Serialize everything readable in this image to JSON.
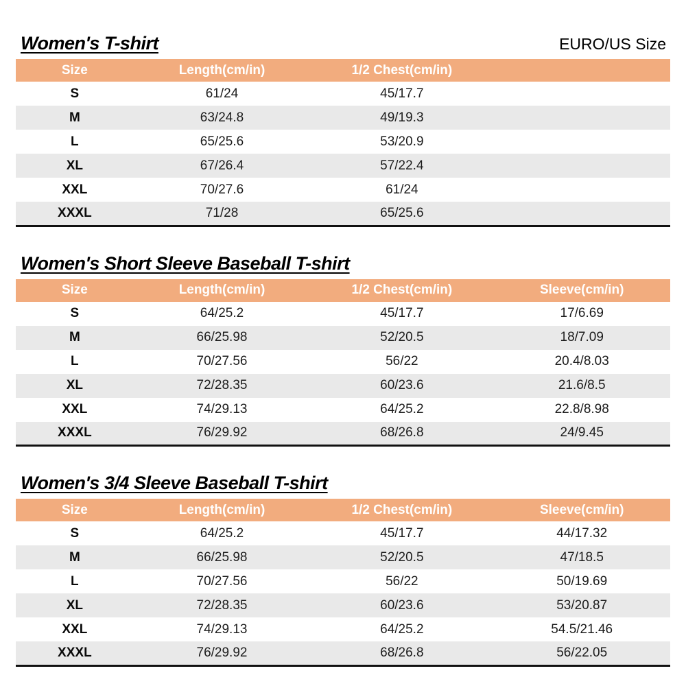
{
  "header": {
    "unit_label": "EURO/US Size"
  },
  "colors": {
    "header_bg": "#F2AC7E",
    "alt_row_bg": "#E9E9E9",
    "header_text": "#FFFFFF",
    "bottom_rule": "#111111"
  },
  "tables": [
    {
      "title": "Women's T-shirt",
      "columns": [
        "Size",
        "Length(cm/in)",
        "1/2 Chest(cm/in)",
        ""
      ],
      "rows": [
        [
          "S",
          "61/24",
          "45/17.7",
          ""
        ],
        [
          "M",
          "63/24.8",
          "49/19.3",
          ""
        ],
        [
          "L",
          "65/25.6",
          "53/20.9",
          ""
        ],
        [
          "XL",
          "67/26.4",
          "57/22.4",
          ""
        ],
        [
          "XXL",
          "70/27.6",
          "61/24",
          ""
        ],
        [
          "XXXL",
          "71/28",
          "65/25.6",
          ""
        ]
      ]
    },
    {
      "title": "Women's Short Sleeve Baseball T-shirt",
      "columns": [
        "Size",
        "Length(cm/in)",
        "1/2 Chest(cm/in)",
        "Sleeve(cm/in)"
      ],
      "rows": [
        [
          "S",
          "64/25.2",
          "45/17.7",
          "17/6.69"
        ],
        [
          "M",
          "66/25.98",
          "52/20.5",
          "18/7.09"
        ],
        [
          "L",
          "70/27.56",
          "56/22",
          "20.4/8.03"
        ],
        [
          "XL",
          "72/28.35",
          "60/23.6",
          "21.6/8.5"
        ],
        [
          "XXL",
          "74/29.13",
          "64/25.2",
          "22.8/8.98"
        ],
        [
          "XXXL",
          "76/29.92",
          "68/26.8",
          "24/9.45"
        ]
      ]
    },
    {
      "title": "Women's 3/4 Sleeve Baseball T-shirt",
      "columns": [
        "Size",
        "Length(cm/in)",
        "1/2 Chest(cm/in)",
        "Sleeve(cm/in)"
      ],
      "rows": [
        [
          "S",
          "64/25.2",
          "45/17.7",
          "44/17.32"
        ],
        [
          "M",
          "66/25.98",
          "52/20.5",
          "47/18.5"
        ],
        [
          "L",
          "70/27.56",
          "56/22",
          "50/19.69"
        ],
        [
          "XL",
          "72/28.35",
          "60/23.6",
          "53/20.87"
        ],
        [
          "XXL",
          "74/29.13",
          "64/25.2",
          "54.5/21.46"
        ],
        [
          "XXXL",
          "76/29.92",
          "68/26.8",
          "56/22.05"
        ]
      ]
    }
  ]
}
